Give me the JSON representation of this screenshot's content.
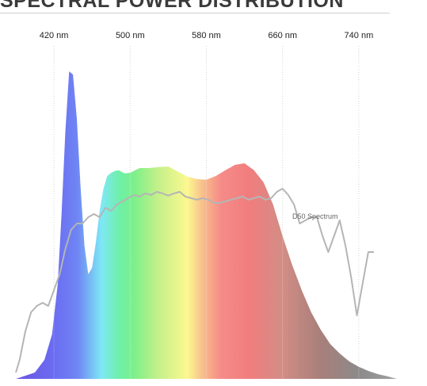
{
  "chart_data": {
    "type": "area",
    "title": "SPECTRAL POWER DISTRIBUTION",
    "xlim": [
      380,
      780
    ],
    "ylim": [
      0,
      1
    ],
    "x_ticks": [
      420,
      500,
      580,
      660,
      740
    ],
    "x_tick_labels": [
      "420 nm",
      "500 nm",
      "580 nm",
      "660 nm",
      "740 nm"
    ],
    "grid": "vertical",
    "series": [
      {
        "kind": "filled-spectrum",
        "x": [
          380,
          400,
          410,
          418,
          424,
          428,
          432,
          436,
          440,
          444,
          448,
          452,
          456,
          460,
          464,
          468,
          472,
          476,
          480,
          484,
          488,
          494,
          500,
          510,
          520,
          530,
          540,
          550,
          560,
          570,
          580,
          590,
          600,
          610,
          620,
          630,
          640,
          650,
          660,
          670,
          680,
          690,
          700,
          710,
          720,
          730,
          740,
          750,
          760,
          770,
          780
        ],
        "values": [
          0.0,
          0.02,
          0.06,
          0.14,
          0.3,
          0.52,
          0.78,
          0.97,
          0.96,
          0.82,
          0.6,
          0.42,
          0.33,
          0.35,
          0.43,
          0.53,
          0.6,
          0.64,
          0.65,
          0.656,
          0.658,
          0.648,
          0.65,
          0.665,
          0.665,
          0.668,
          0.67,
          0.654,
          0.638,
          0.63,
          0.628,
          0.64,
          0.658,
          0.675,
          0.68,
          0.658,
          0.62,
          0.55,
          0.45,
          0.36,
          0.28,
          0.21,
          0.155,
          0.11,
          0.08,
          0.055,
          0.038,
          0.025,
          0.015,
          0.008,
          0.0
        ]
      },
      {
        "name": "D50 Spectrum",
        "kind": "line",
        "color": "#b5b5b5",
        "x": [
          380,
          384,
          390,
          396,
          402,
          408,
          414,
          420,
          426,
          432,
          438,
          444,
          450,
          456,
          462,
          468,
          474,
          480,
          486,
          492,
          498,
          504,
          510,
          516,
          522,
          528,
          534,
          540,
          546,
          552,
          558,
          564,
          570,
          576,
          582,
          588,
          594,
          600,
          606,
          612,
          618,
          624,
          630,
          636,
          642,
          648,
          654,
          660,
          666,
          672,
          678,
          684,
          690,
          696,
          702,
          708,
          714,
          720,
          726,
          732,
          738,
          744,
          750,
          756
        ],
        "values": [
          0.02,
          0.06,
          0.15,
          0.21,
          0.23,
          0.24,
          0.23,
          0.28,
          0.33,
          0.41,
          0.47,
          0.49,
          0.49,
          0.51,
          0.52,
          0.51,
          0.54,
          0.53,
          0.55,
          0.56,
          0.57,
          0.58,
          0.575,
          0.585,
          0.58,
          0.59,
          0.585,
          0.578,
          0.585,
          0.59,
          0.575,
          0.57,
          0.565,
          0.57,
          0.565,
          0.555,
          0.555,
          0.56,
          0.565,
          0.57,
          0.575,
          0.565,
          0.57,
          0.575,
          0.565,
          0.57,
          0.59,
          0.6,
          0.58,
          0.55,
          0.49,
          0.5,
          0.51,
          0.51,
          0.45,
          0.4,
          0.45,
          0.5,
          0.42,
          0.32,
          0.2,
          0.3,
          0.4,
          0.4
        ]
      }
    ]
  }
}
